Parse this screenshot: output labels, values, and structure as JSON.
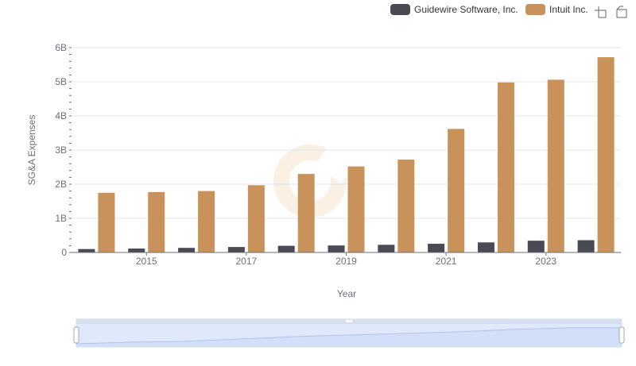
{
  "chart_data": {
    "type": "bar",
    "title": "",
    "xlabel": "Year",
    "ylabel": "SG&A Expenses",
    "ylim": [
      0,
      6000000000
    ],
    "y_ticks": [
      {
        "value": 0,
        "label": "0"
      },
      {
        "value": 1000000000,
        "label": "1B"
      },
      {
        "value": 2000000000,
        "label": "2B"
      },
      {
        "value": 3000000000,
        "label": "3B"
      },
      {
        "value": 4000000000,
        "label": "4B"
      },
      {
        "value": 5000000000,
        "label": "5B"
      },
      {
        "value": 6000000000,
        "label": "6B"
      }
    ],
    "categories": [
      "2014",
      "2015",
      "2016",
      "2017",
      "2018",
      "2019",
      "2020",
      "2021",
      "2022",
      "2023",
      "2024"
    ],
    "x_tick_labels": [
      "2015",
      "2017",
      "2019",
      "2021",
      "2023"
    ],
    "grid": true,
    "legend_position": "top-right",
    "series": [
      {
        "name": "Guidewire Software, Inc.",
        "color": "#4a4a55",
        "values": [
          100000000,
          115000000,
          135000000,
          160000000,
          195000000,
          205000000,
          225000000,
          255000000,
          295000000,
          345000000,
          360000000
        ]
      },
      {
        "name": "Intuit Inc.",
        "color": "#c9925a",
        "values": [
          1750000000,
          1770000000,
          1800000000,
          1970000000,
          2300000000,
          2520000000,
          2720000000,
          3620000000,
          4980000000,
          5060000000,
          5720000000
        ]
      }
    ]
  },
  "toolbar": {
    "zoom_icon": "zoom-icon",
    "restore_icon": "restore-icon"
  },
  "colors": {
    "grid": "#e0e6f1",
    "axis": "#6e7079",
    "slider_fill": "#dbe5fa",
    "slider_border": "#c3cfe6"
  }
}
